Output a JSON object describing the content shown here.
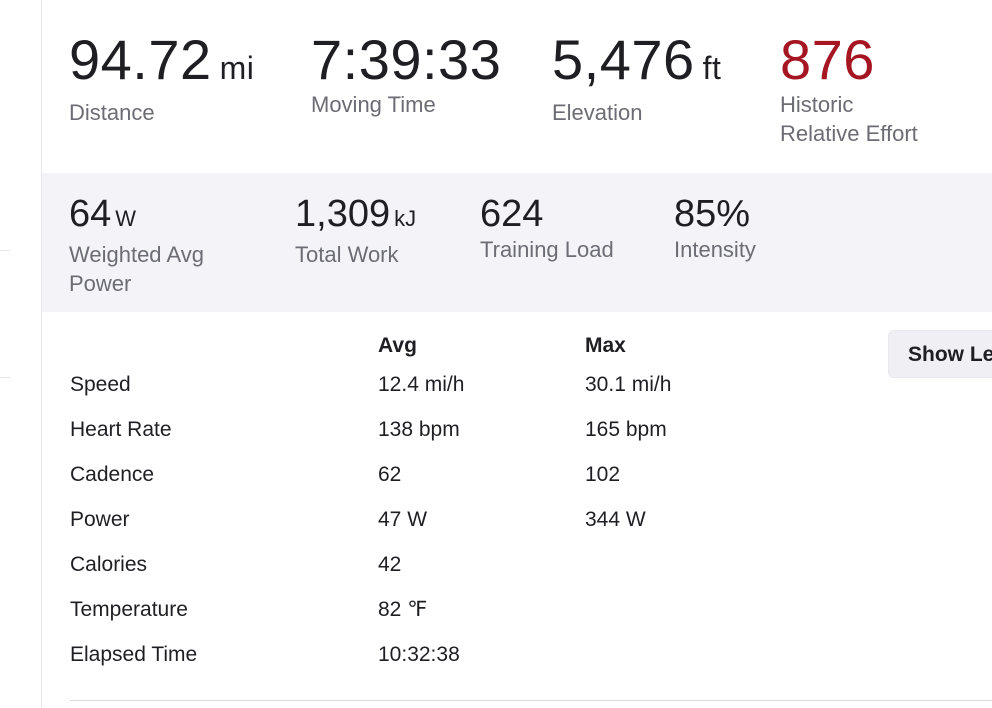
{
  "top_stats": [
    {
      "value": "94.72",
      "unit": "mi",
      "label": "Distance"
    },
    {
      "value": "7:39:33",
      "unit": "",
      "label": "Moving Time"
    },
    {
      "value": "5,476",
      "unit": "ft",
      "label": "Elevation"
    },
    {
      "value": "876",
      "unit": "",
      "label_line1": "Historic",
      "label_line2": "Relative Effort"
    }
  ],
  "secondary_stats": [
    {
      "value": "64",
      "unit": "W",
      "label_line1": "Weighted Avg",
      "label_line2": "Power"
    },
    {
      "value": "1,309",
      "unit": "kJ",
      "label": "Total Work"
    },
    {
      "value": "624",
      "unit": "",
      "label": "Training Load"
    },
    {
      "value": "85%",
      "unit": "",
      "label": "Intensity"
    }
  ],
  "table": {
    "headers": {
      "avg": "Avg",
      "max": "Max"
    },
    "rows": [
      {
        "name": "Speed",
        "avg": "12.4 mi/h",
        "max": "30.1 mi/h"
      },
      {
        "name": "Heart Rate",
        "avg": "138 bpm",
        "max": "165 bpm"
      },
      {
        "name": "Cadence",
        "avg": "62",
        "max": "102"
      },
      {
        "name": "Power",
        "avg": "47 W",
        "max": "344 W"
      },
      {
        "name": "Calories",
        "avg": "42",
        "max": ""
      },
      {
        "name": "Temperature",
        "avg": "82 ℉",
        "max": ""
      },
      {
        "name": "Elapsed Time",
        "avg": "10:32:38",
        "max": ""
      }
    ]
  },
  "show_button_label": "Show Le",
  "colors": {
    "relative_effort": "#a51622",
    "band_bg": "#f4f4f8",
    "label": "#6c6c74"
  }
}
